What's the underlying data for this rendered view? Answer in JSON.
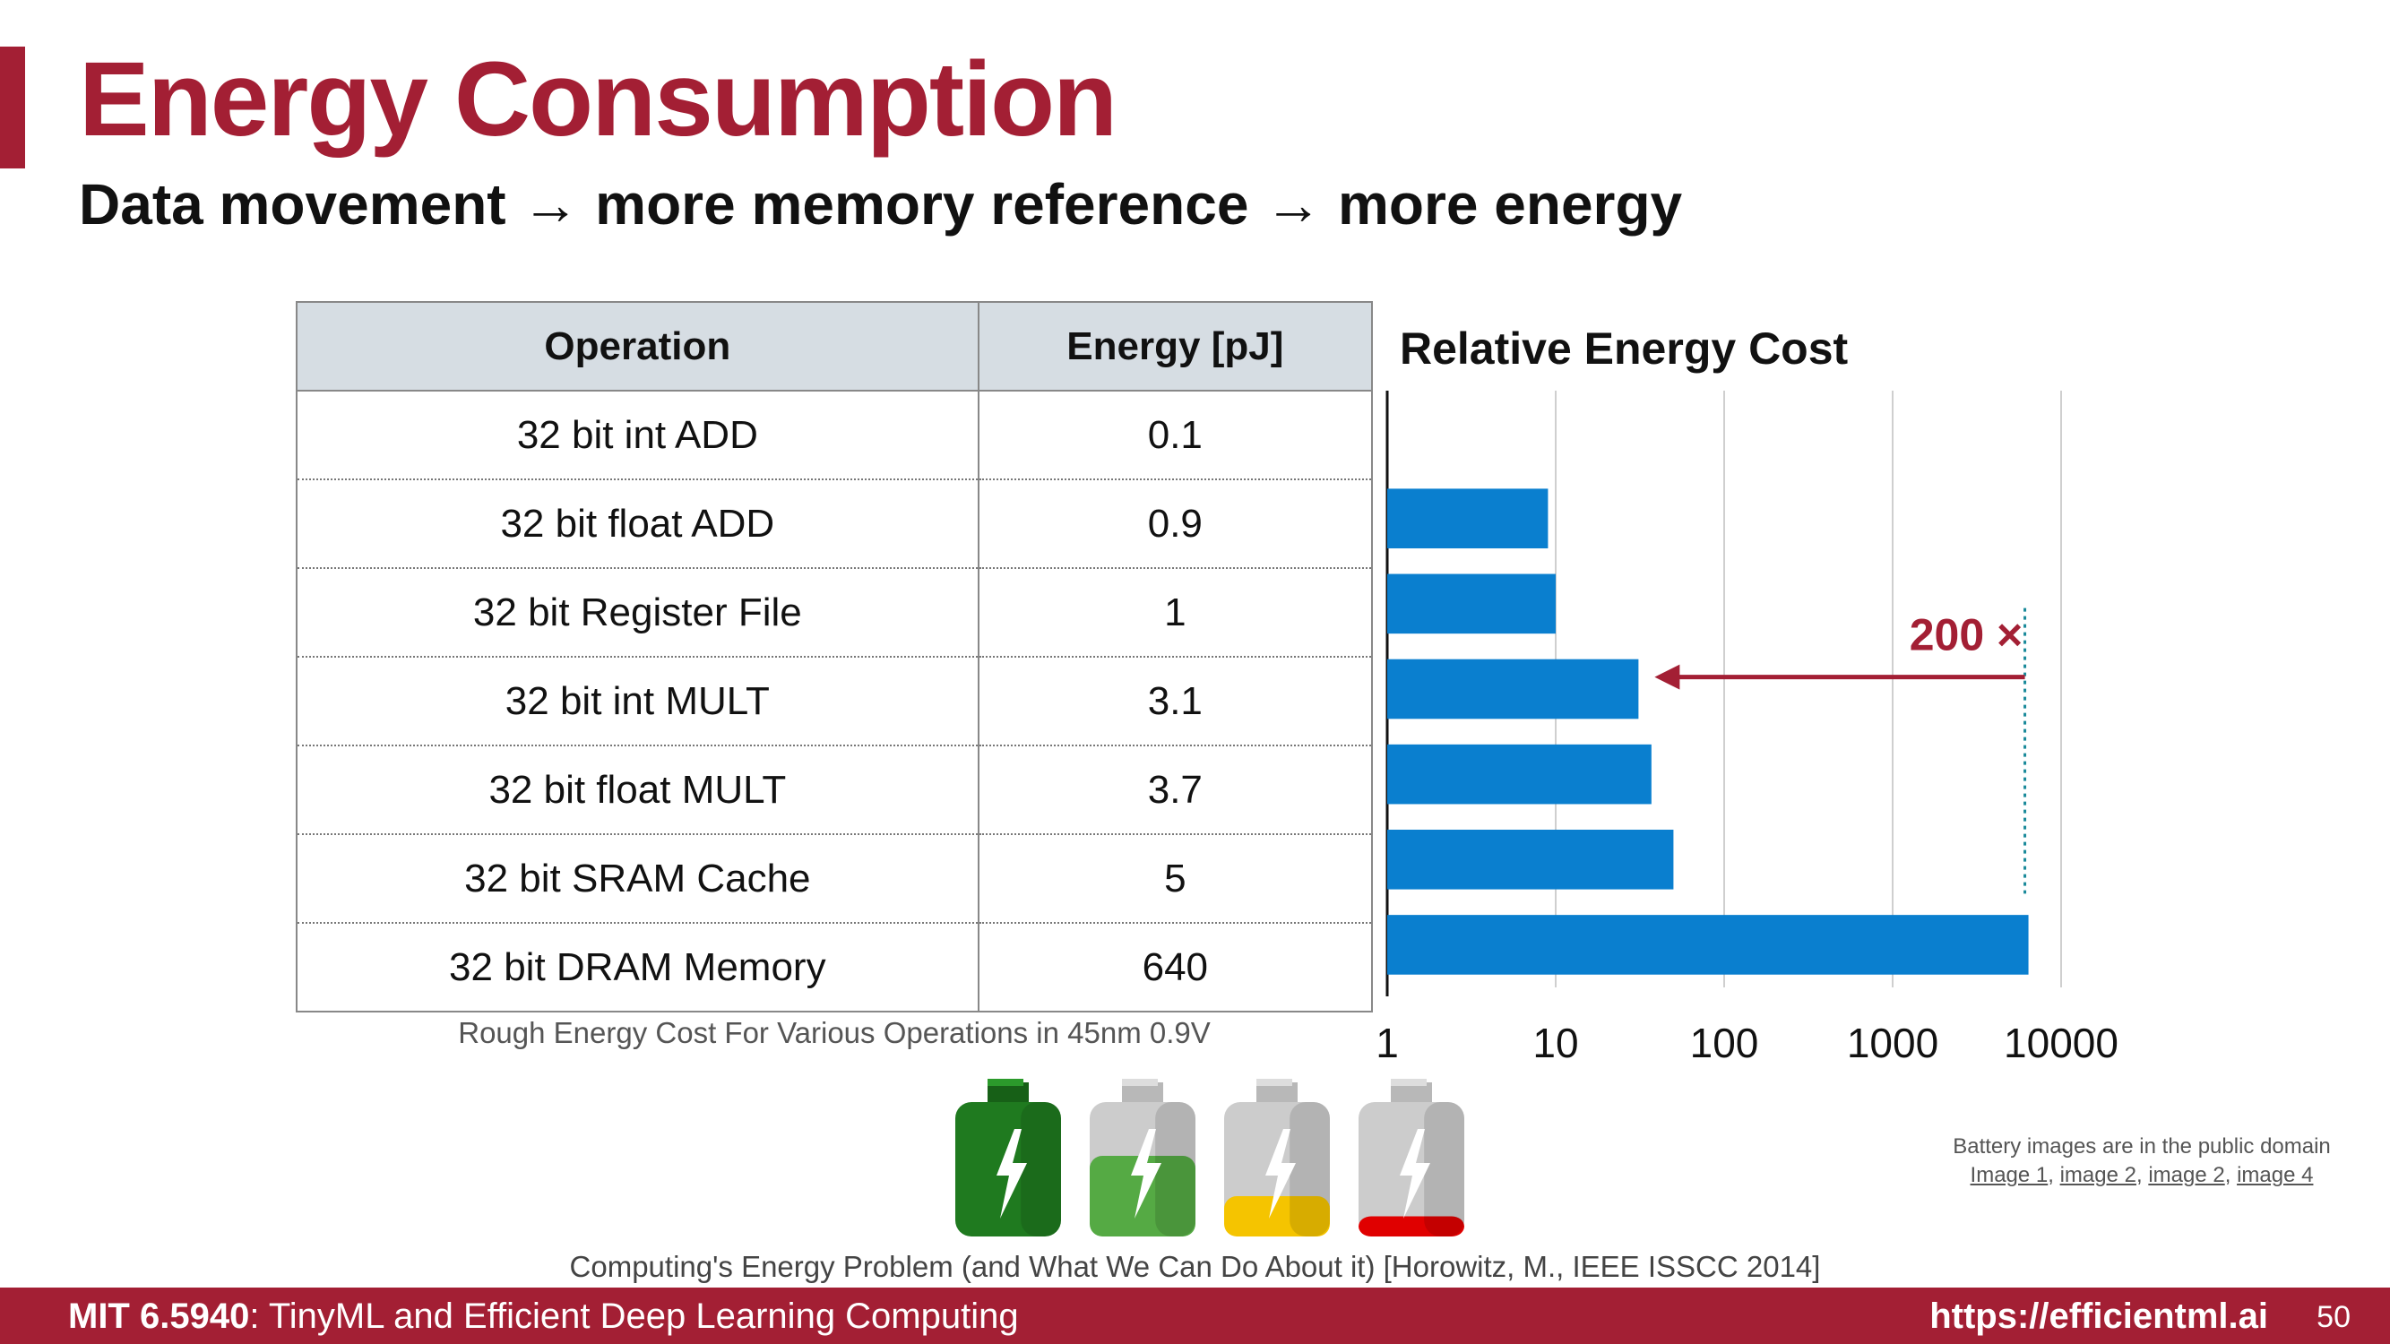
{
  "slide": {
    "title": "Energy Consumption",
    "subtitle": "Data movement → more memory reference → more energy"
  },
  "table": {
    "headers": [
      "Operation",
      "Energy [pJ]"
    ],
    "rows": [
      {
        "operation": "32 bit int ADD",
        "energy": "0.1"
      },
      {
        "operation": "32 bit float ADD",
        "energy": "0.9"
      },
      {
        "operation": "32 bit Register File",
        "energy": "1"
      },
      {
        "operation": "32 bit int MULT",
        "energy": "3.1"
      },
      {
        "operation": "32 bit float MULT",
        "energy": "3.7"
      },
      {
        "operation": "32 bit SRAM Cache",
        "energy": "5"
      },
      {
        "operation": "32 bit DRAM Memory",
        "energy": "640"
      }
    ],
    "caption": "Rough Energy Cost For Various Operations in 45nm 0.9V"
  },
  "chart_data": {
    "type": "bar",
    "orientation": "horizontal",
    "title": "Relative Energy Cost",
    "x_scale": "log",
    "xlim": [
      1,
      10000
    ],
    "x_ticks": [
      "1",
      "10",
      "100",
      "1000",
      "10000"
    ],
    "grid": true,
    "categories": [
      "32 bit int ADD",
      "32 bit float ADD",
      "32 bit Register File",
      "32 bit int MULT",
      "32 bit float MULT",
      "32 bit SRAM Cache",
      "32 bit DRAM Memory"
    ],
    "values": [
      1,
      9,
      10,
      31,
      37,
      50,
      6400
    ],
    "bar_color": "#0a7fcf",
    "annotation": {
      "text": "200 ×",
      "from_value": 6400,
      "to_value": 31,
      "color": "#a31f34"
    }
  },
  "batteries": [
    {
      "name": "battery-full-dark-green",
      "body": "#1f7a1f",
      "top": "#1f7a1f",
      "fill_level": 1.0
    },
    {
      "name": "battery-green",
      "body": "#cccccc",
      "top": "#cccccc",
      "fill_color": "#55aa44",
      "fill_level": 0.6
    },
    {
      "name": "battery-yellow",
      "body": "#cccccc",
      "top": "#cccccc",
      "fill_color": "#f5c400",
      "fill_level": 0.3
    },
    {
      "name": "battery-red",
      "body": "#cccccc",
      "top": "#cccccc",
      "fill_color": "#e00000",
      "fill_level": 0.15
    }
  ],
  "reference": "Computing's Energy Problem (and What We Can Do About it) [Horowitz, M., IEEE ISSCC 2014]",
  "credit": {
    "line1": "Battery images are in the public domain",
    "links": [
      "Image 1",
      "image 2",
      "image 2",
      "image 4"
    ]
  },
  "footer": {
    "course_code": "MIT 6.5940",
    "course_name": ": TinyML and Efficient Deep Learning Computing",
    "url": "https://efficientml.ai",
    "page": "50"
  },
  "colors": {
    "accent": "#a31f34",
    "bar": "#0a7fcf",
    "header_bg": "#d6dde3"
  }
}
